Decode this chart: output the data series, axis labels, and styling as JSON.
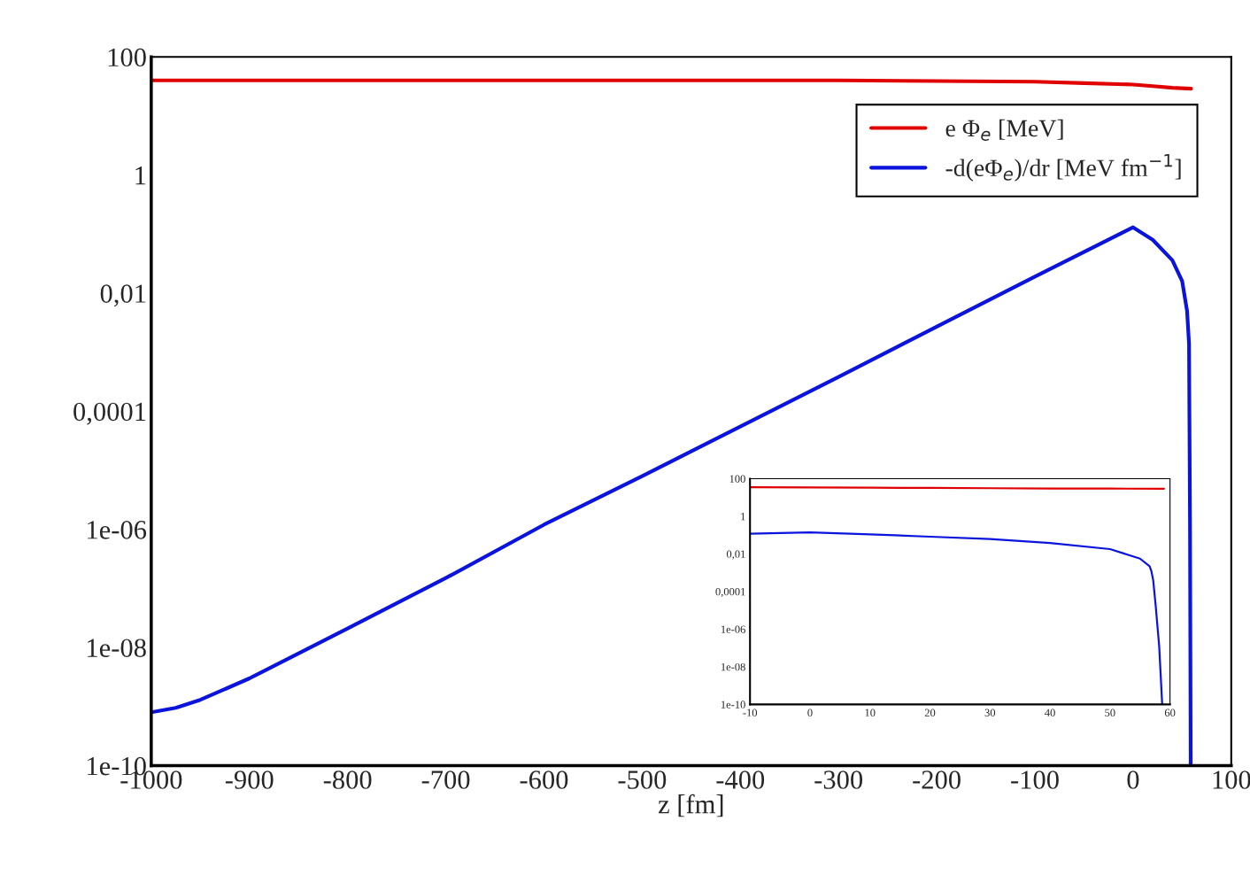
{
  "chart_data": [
    {
      "type": "line",
      "xlabel": "z [fm]",
      "log": "y",
      "grid": false,
      "legend": "top right",
      "marker": "none",
      "line_style": "solid",
      "xlim": [
        -1000,
        100
      ],
      "xticks": [
        -1000,
        -900,
        -800,
        -700,
        -600,
        -500,
        -400,
        -300,
        -200,
        -100,
        0,
        100
      ],
      "ylim": [
        1e-10,
        100
      ],
      "yticks": [
        {
          "value": 1e-10,
          "label": "1e-10"
        },
        {
          "value": 1e-08,
          "label": "1e-08"
        },
        {
          "value": 1e-06,
          "label": "1e-06"
        },
        {
          "value": 0.0001,
          "label": "0,0001"
        },
        {
          "value": 0.01,
          "label": "0,01"
        },
        1,
        100
      ],
      "series": [
        {
          "name": "e Φ$_{e}$ [MeV]",
          "color": "#e00000",
          "x": [
            -1000,
            -800,
            -600,
            -400,
            -300,
            -200,
            -100,
            -50,
            0,
            20,
            40,
            59
          ],
          "values": [
            40,
            40,
            40,
            40,
            40,
            39,
            38,
            36,
            34,
            32,
            30,
            29
          ]
        },
        {
          "name": "-d(eΦ$_{e}$)/dr [MeV fm$^{−1}$]",
          "color": "#0a14dc",
          "x": [
            -1000,
            -975,
            -950,
            -900,
            -800,
            -700,
            -600,
            -500,
            -400,
            -300,
            -200,
            -100,
            0,
            20,
            40,
            50,
            55,
            57,
            58,
            58.7
          ],
          "values": [
            8e-10,
            9.5e-10,
            1.3e-09,
            3e-09,
            2.1e-08,
            1.5e-07,
            1.2e-06,
            8e-06,
            5.5e-05,
            0.00038,
            0.0027,
            0.019,
            0.13,
            0.08,
            0.036,
            0.016,
            0.005,
            0.0014,
            1.2e-06,
            1e-10
          ]
        }
      ]
    },
    {
      "type": "line",
      "log": "y",
      "grid": false,
      "marker": "none",
      "line_style": "solid",
      "xlim": [
        -10,
        60
      ],
      "xticks": [
        -10,
        0,
        10,
        20,
        30,
        40,
        50,
        60
      ],
      "ylim": [
        1e-10,
        100
      ],
      "yticks": [
        {
          "value": 1e-10,
          "label": "1e-10"
        },
        {
          "value": 1e-08,
          "label": "1e-08"
        },
        {
          "value": 1e-06,
          "label": "1e-06"
        },
        {
          "value": 0.0001,
          "label": "0,0001"
        },
        {
          "value": 0.01,
          "label": "0,01"
        },
        1,
        100
      ],
      "series": [
        {
          "color": "#e00000",
          "x": [
            -10,
            0,
            10,
            20,
            30,
            40,
            50,
            59
          ],
          "values": [
            35,
            34,
            33,
            32,
            31,
            30,
            29.5,
            29
          ]
        },
        {
          "color": "#0a14dc",
          "x": [
            -10,
            0,
            10,
            20,
            30,
            40,
            50,
            55,
            56.6,
            56.9,
            57.2,
            57.6,
            58.2,
            58.7
          ],
          "values": [
            0.117,
            0.14,
            0.11,
            0.082,
            0.061,
            0.038,
            0.018,
            0.0056,
            0.0022,
            0.0012,
            0.0004,
            2e-05,
            1.2e-07,
            1e-10
          ]
        }
      ]
    }
  ]
}
